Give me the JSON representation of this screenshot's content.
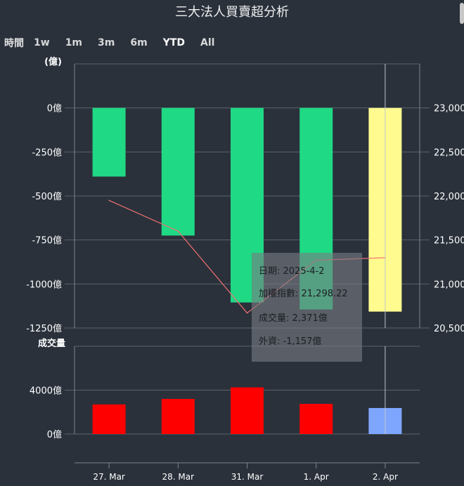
{
  "title": "三大法人買賣超分析",
  "range_selector": {
    "label": "時間",
    "buttons": [
      {
        "label": "1w",
        "active": false
      },
      {
        "label": "1m",
        "active": false
      },
      {
        "label": "3m",
        "active": false
      },
      {
        "label": "6m",
        "active": false
      },
      {
        "label": "YTD",
        "active": true
      },
      {
        "label": "All",
        "active": false
      }
    ]
  },
  "tooltip": {
    "date": "日期: 2025-4-2",
    "index": "加權指數: 21,298.22",
    "volume": "成交量: 2,371億",
    "foreign": "外資: -1,157億"
  },
  "chart_data": {
    "type": "bar",
    "categories": [
      "27. Mar",
      "28. Mar",
      "31. Mar",
      "1. Apr",
      "2. Apr"
    ],
    "upper_panel": {
      "left_axis_unit_label": "(億)",
      "left_ticks": [
        "0億",
        "-250億",
        "-500億",
        "-750億",
        "-1000億",
        "-1250億"
      ],
      "left_tick_values": [
        0,
        -250,
        -500,
        -750,
        -1000,
        -1250
      ],
      "ylim_left": [
        -1250,
        250
      ],
      "right_ticks": [
        "23,000",
        "22,500",
        "22,000",
        "21,500",
        "21,000",
        "20,500"
      ],
      "right_tick_values": [
        23000,
        22500,
        22000,
        21500,
        21000,
        20500
      ],
      "ylim_right": [
        20500,
        23500
      ],
      "series": [
        {
          "name": "外資",
          "type": "bar",
          "values": [
            -390,
            -725,
            -1105,
            -1145,
            -1157
          ],
          "colors": [
            "#1fd985",
            "#1fd985",
            "#1fd985",
            "#1fd985",
            "#fffb8f"
          ]
        },
        {
          "name": "加權指數",
          "type": "line",
          "values": [
            21950,
            21600,
            20670,
            21270,
            21298.22
          ],
          "color": "#f07070"
        }
      ]
    },
    "lower_panel": {
      "label": "成交量",
      "ticks": [
        "4000億",
        "0億"
      ],
      "tick_values": [
        4000,
        0
      ],
      "ylim": [
        0,
        8000
      ],
      "series": [
        {
          "name": "成交量",
          "type": "bar",
          "values": [
            2700,
            3200,
            4250,
            2750,
            2371
          ],
          "colors": [
            "#ff0000",
            "#ff0000",
            "#ff0000",
            "#ff0000",
            "#7fa6ff"
          ]
        }
      ]
    },
    "highlight_index": 4
  }
}
